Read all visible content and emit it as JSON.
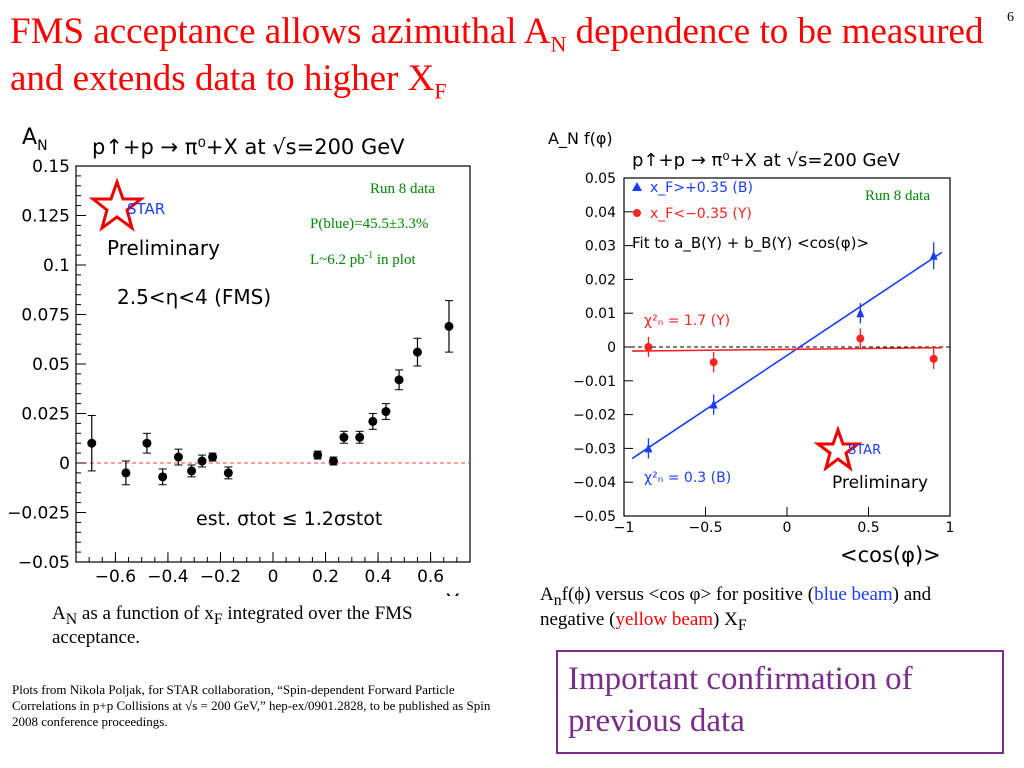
{
  "page_number": "6",
  "title": {
    "part1": "FMS acceptance allows azimuthal A",
    "sub1": "N",
    "part2": " dependence to be measured and extends data to higher X",
    "sub2": "F"
  },
  "chart_data": [
    {
      "type": "scatter",
      "ylabel_main": "A",
      "ylabel_sub": "N",
      "xlabel_main": "X",
      "xlabel_sub": "F",
      "reaction": "p↑+p → π⁰+X at √s=200 GeV",
      "logo_text": "STAR",
      "preliminary": "Preliminary",
      "eta_range": "2.5<η<4 (FMS)",
      "run": "Run 8 data",
      "polarization": "P(blue)=45.5±3.3%",
      "lumi_prefix": "L~6.2 pb",
      "lumi_sup": "-1",
      "lumi_suffix": " in plot",
      "sigma_note": "est. σtot ≤ 1.2σstot",
      "xlim": [
        -0.75,
        0.75
      ],
      "ylim": [
        -0.05,
        0.15
      ],
      "xticks": [
        "−0.6",
        "−0.4",
        "−0.2",
        "0",
        "0.2",
        "0.4",
        "0.6"
      ],
      "yticks": [
        "−0.05",
        "−0.025",
        "0",
        "0.025",
        "0.05",
        "0.075",
        "0.1",
        "0.125",
        "0.15"
      ],
      "points": [
        {
          "x": -0.69,
          "y": 0.01,
          "err": 0.014
        },
        {
          "x": -0.56,
          "y": -0.005,
          "err": 0.006
        },
        {
          "x": -0.48,
          "y": 0.01,
          "err": 0.005
        },
        {
          "x": -0.42,
          "y": -0.007,
          "err": 0.004
        },
        {
          "x": -0.36,
          "y": 0.003,
          "err": 0.004
        },
        {
          "x": -0.31,
          "y": -0.004,
          "err": 0.003
        },
        {
          "x": -0.27,
          "y": 0.001,
          "err": 0.003
        },
        {
          "x": -0.23,
          "y": 0.003,
          "err": 0.002
        },
        {
          "x": -0.17,
          "y": -0.005,
          "err": 0.003
        },
        {
          "x": 0.17,
          "y": 0.004,
          "err": 0.002
        },
        {
          "x": 0.23,
          "y": 0.001,
          "err": 0.002
        },
        {
          "x": 0.27,
          "y": 0.013,
          "err": 0.003
        },
        {
          "x": 0.33,
          "y": 0.013,
          "err": 0.003
        },
        {
          "x": 0.38,
          "y": 0.021,
          "err": 0.004
        },
        {
          "x": 0.43,
          "y": 0.026,
          "err": 0.004
        },
        {
          "x": 0.48,
          "y": 0.042,
          "err": 0.005
        },
        {
          "x": 0.55,
          "y": 0.056,
          "err": 0.007
        },
        {
          "x": 0.67,
          "y": 0.069,
          "err": 0.013
        }
      ]
    },
    {
      "type": "scatter",
      "ylabel": "A_N f(φ)",
      "xlabel": "<cos(φ)>",
      "reaction": "p↑+p → π⁰+X at √s=200 GeV",
      "run": "Run 8 data",
      "legend_blue": "x_F>+0.35 (B)",
      "legend_red": "x_F<−0.35 (Y)",
      "fit_text": "Fit to a_B(Y) + b_B(Y) <cos(φ)>",
      "chi_red": "χ²ₙ = 1.7 (Y)",
      "chi_blue": "χ²ₙ = 0.3 (B)",
      "logo_text": "STAR",
      "preliminary": "Preliminary",
      "xlim": [
        -1,
        1
      ],
      "ylim": [
        -0.05,
        0.05
      ],
      "xticks": [
        "−1",
        "−0.5",
        "0",
        "0.5",
        "1"
      ],
      "yticks": [
        "−0.05",
        "−0.04",
        "−0.03",
        "−0.02",
        "−0.01",
        "0",
        "0.01",
        "0.02",
        "0.03",
        "0.04",
        "0.05"
      ],
      "series": [
        {
          "name": "x_F>+0.35 (B)",
          "color": "#1a3cff",
          "marker": "triangle",
          "points": [
            {
              "x": -0.85,
              "y": -0.03,
              "err": 0.003
            },
            {
              "x": -0.45,
              "y": -0.017,
              "err": 0.003
            },
            {
              "x": 0.45,
              "y": 0.01,
              "err": 0.003
            },
            {
              "x": 0.9,
              "y": 0.027,
              "err": 0.004
            }
          ],
          "fit": [
            [
              -0.95,
              -0.033
            ],
            [
              0.95,
              0.028
            ]
          ]
        },
        {
          "name": "x_F<−0.35 (Y)",
          "color": "#ff2020",
          "marker": "circle",
          "points": [
            {
              "x": -0.85,
              "y": 0.0,
              "err": 0.003
            },
            {
              "x": -0.45,
              "y": -0.0045,
              "err": 0.003
            },
            {
              "x": 0.45,
              "y": 0.0025,
              "err": 0.003
            },
            {
              "x": 0.9,
              "y": -0.0035,
              "err": 0.003
            }
          ],
          "fit": [
            [
              -0.95,
              -0.0012
            ],
            [
              0.95,
              -0.0002
            ]
          ]
        }
      ]
    }
  ],
  "caption_left": {
    "a": "A",
    "a_sub": "N",
    "mid": " as a function of x",
    "x_sub": "F",
    "end": " integrated over the FMS acceptance."
  },
  "caption_right": {
    "a": "A",
    "a_sub": "n",
    "p1": "f(ϕ) versus <cos φ> for positive (",
    "blue": "blue beam",
    "p2": ") and negative (",
    "yellow": "yellow beam",
    "p3": ") X",
    "x_sub": "F"
  },
  "references": "Plots from Nikola Poljak, for STAR collaboration, “Spin-dependent Forward Particle Correlations in p+p Collisions at √s = 200 GeV,” hep-ex/0901.2828, to be published as Spin 2008 conference proceedings.",
  "confirmation": "Important confirmation of previous data"
}
